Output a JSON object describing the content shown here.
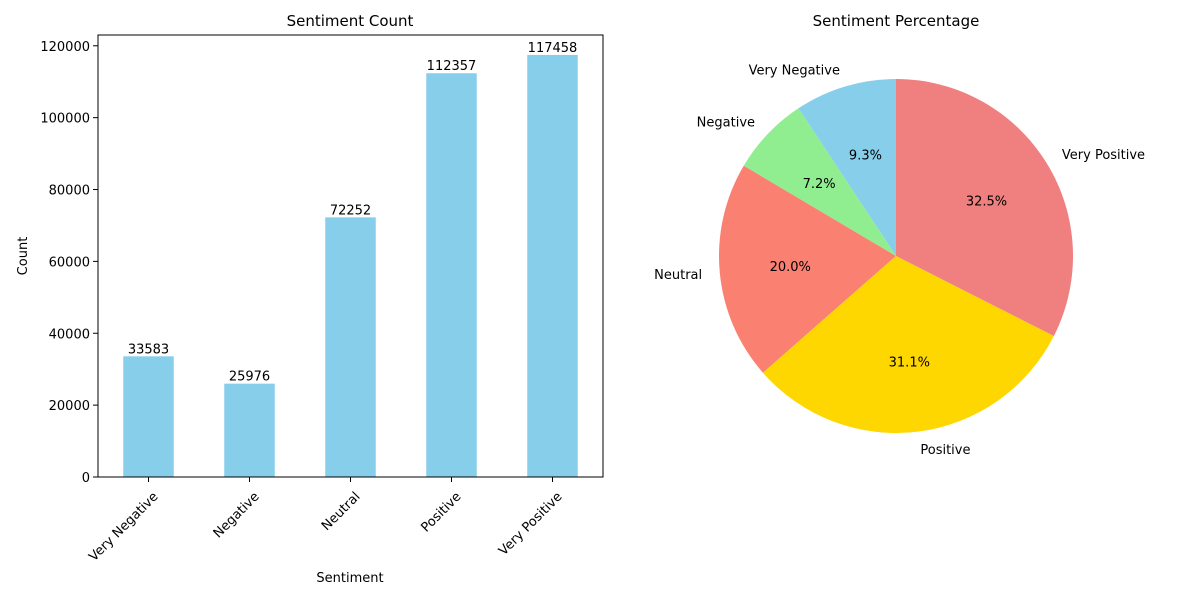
{
  "chart_data": [
    {
      "type": "bar",
      "title": "Sentiment Count",
      "xlabel": "Sentiment",
      "ylabel": "Count",
      "categories": [
        "Very Negative",
        "Negative",
        "Neutral",
        "Positive",
        "Very Positive"
      ],
      "values": [
        33583,
        25976,
        72252,
        112357,
        117458
      ],
      "data_labels": [
        "33583",
        "25976",
        "72252",
        "112357",
        "117458"
      ],
      "ylim": [
        0,
        123000
      ],
      "yticks": [
        0,
        20000,
        40000,
        60000,
        80000,
        100000,
        120000
      ],
      "color": "#87ceeb",
      "grid": false
    },
    {
      "type": "pie",
      "title": "Sentiment Percentage",
      "categories": [
        "Very Negative",
        "Negative",
        "Neutral",
        "Positive",
        "Very Positive"
      ],
      "values": [
        9.3,
        7.2,
        20.0,
        31.1,
        32.5
      ],
      "value_labels": [
        "9.3%",
        "7.2%",
        "20.0%",
        "31.1%",
        "32.5%"
      ],
      "colors": [
        "#87ceeb",
        "#90ee90",
        "#fa8072",
        "#ffd700",
        "#f08080"
      ]
    }
  ]
}
